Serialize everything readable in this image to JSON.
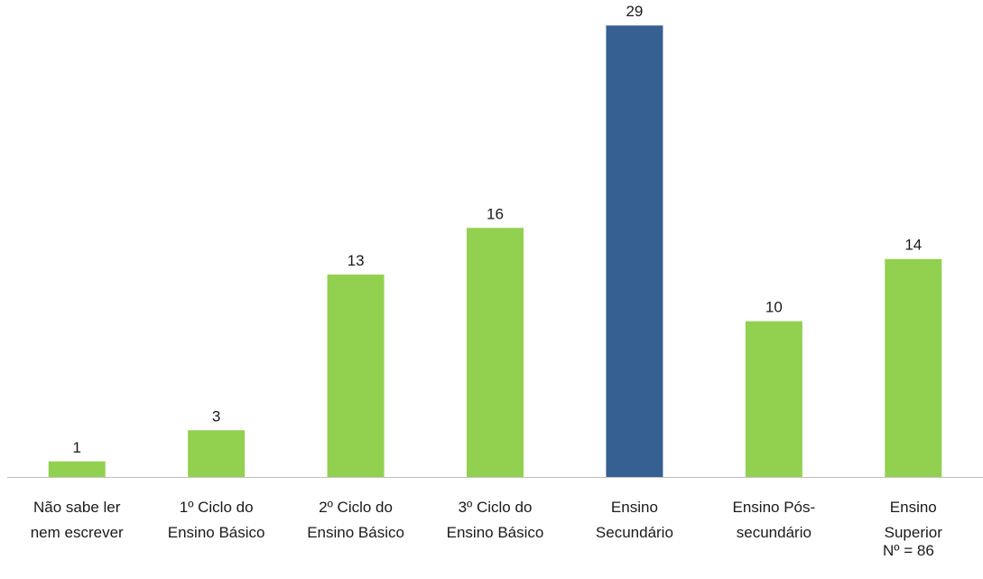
{
  "chart_data": {
    "type": "bar",
    "categories": [
      [
        "Não sabe ler",
        "nem escrever"
      ],
      [
        "1º Ciclo do",
        "Ensino Básico"
      ],
      [
        "2º Ciclo do",
        "Ensino Básico"
      ],
      [
        "3º Ciclo do",
        "Ensino Básico"
      ],
      [
        "Ensino",
        "Secundário"
      ],
      [
        "Ensino Pós-",
        "secundário"
      ],
      [
        "Ensino",
        "Superior"
      ]
    ],
    "values": [
      1,
      3,
      13,
      16,
      29,
      10,
      14
    ],
    "highlight_index": 4,
    "colors": {
      "bar": "#92d050",
      "highlight": "#366092",
      "axis": "#bfbfbf"
    },
    "data_labels": true,
    "grid": false,
    "ylim": [
      0,
      30
    ]
  },
  "note": "Nº = 86"
}
